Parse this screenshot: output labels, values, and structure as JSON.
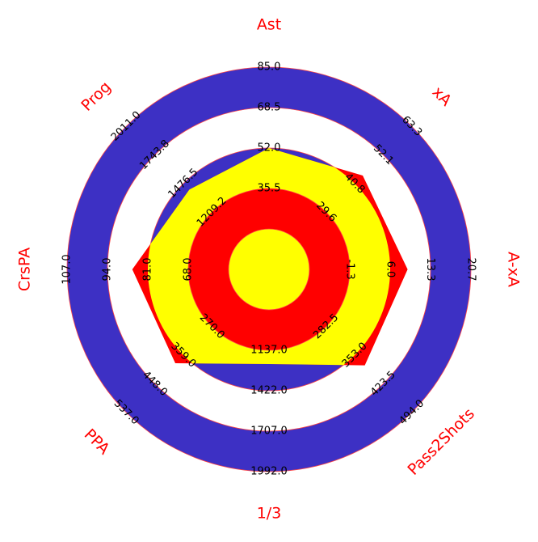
{
  "chart_data": {
    "type": "radar",
    "categories": [
      "Ast",
      "xA",
      "A-xA",
      "Pass2Shots",
      "1/3",
      "PPA",
      "CrsPA",
      "Prog"
    ],
    "axes": [
      {
        "lim": [
          35.5,
          85.0
        ],
        "ticks": [
          35.5,
          52.0,
          68.5,
          85.0
        ]
      },
      {
        "lim": [
          29.6,
          63.3
        ],
        "ticks": [
          29.6,
          40.8,
          52.1,
          63.3
        ]
      },
      {
        "lim": [
          -1.3,
          20.7
        ],
        "ticks": [
          -1.3,
          6.0,
          13.3,
          20.7
        ]
      },
      {
        "lim": [
          282.5,
          494.0
        ],
        "ticks": [
          282.5,
          353.0,
          423.5,
          494.0
        ]
      },
      {
        "lim": [
          1137.0,
          1992.0
        ],
        "ticks": [
          1137.0,
          1422.0,
          1707.0,
          1992.0
        ]
      },
      {
        "lim": [
          270.0,
          537.0
        ],
        "ticks": [
          270.0,
          359.0,
          448.0,
          537.0
        ]
      },
      {
        "lim": [
          68.0,
          107.0
        ],
        "ticks": [
          68.0,
          81.0,
          94.0,
          107.0
        ]
      },
      {
        "lim": [
          1209.2,
          2011.0
        ],
        "ticks": [
          1209.2,
          1476.5,
          1743.8,
          2011.0
        ]
      }
    ],
    "series": [
      {
        "values": [
          52.0,
          44.0,
          9.2,
          378,
          1234,
          384,
          86,
          1420
        ],
        "color": "#ff0000",
        "inner_color": "#ffff00"
      }
    ],
    "ring_color": "#3d30c4"
  }
}
